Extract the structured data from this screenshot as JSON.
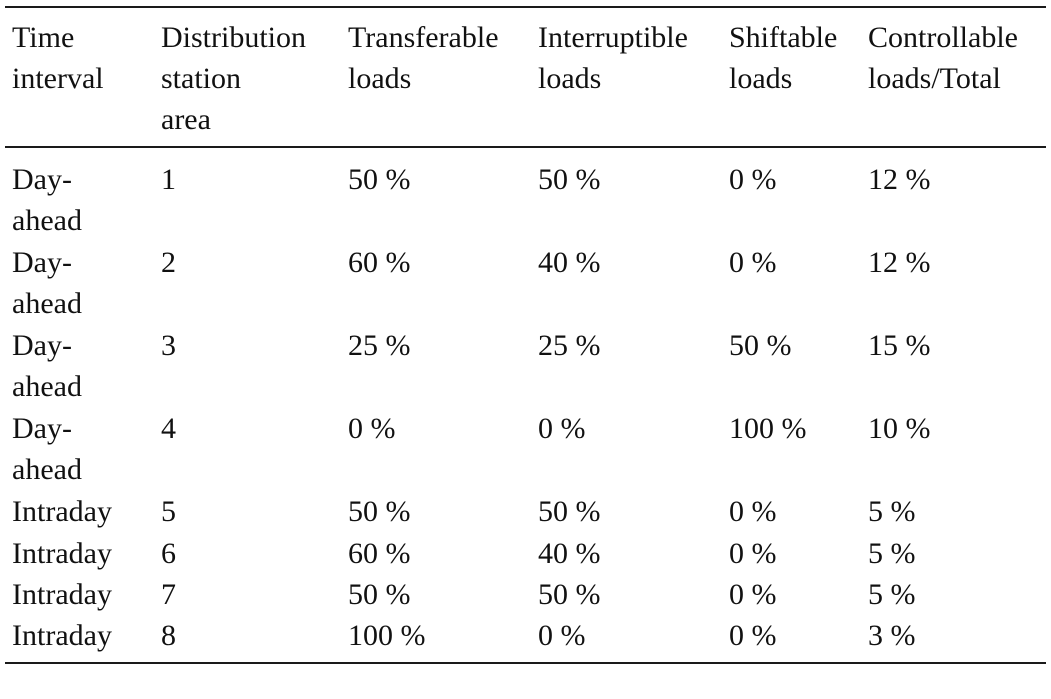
{
  "table": {
    "headers": [
      [
        "Time",
        "interval"
      ],
      [
        "Distribution",
        "station",
        "area"
      ],
      [
        "Transferable",
        "loads"
      ],
      [
        "Interruptible",
        "loads"
      ],
      [
        "Shiftable",
        "loads"
      ],
      [
        "Controllable",
        "loads/Total"
      ]
    ],
    "rows": [
      {
        "time": [
          "Day-",
          "ahead"
        ],
        "area": "1",
        "transferable": "50 %",
        "interruptible": "50 %",
        "shiftable": "0 %",
        "controllable": "12 %"
      },
      {
        "time": [
          "Day-",
          "ahead"
        ],
        "area": "2",
        "transferable": "60 %",
        "interruptible": "40 %",
        "shiftable": "0 %",
        "controllable": "12 %"
      },
      {
        "time": [
          "Day-",
          "ahead"
        ],
        "area": "3",
        "transferable": "25 %",
        "interruptible": "25 %",
        "shiftable": "50 %",
        "controllable": "15 %"
      },
      {
        "time": [
          "Day-",
          "ahead"
        ],
        "area": "4",
        "transferable": "0 %",
        "interruptible": "0 %",
        "shiftable": "100 %",
        "controllable": "10 %"
      },
      {
        "time": [
          "Intraday"
        ],
        "area": "5",
        "transferable": "50 %",
        "interruptible": "50 %",
        "shiftable": "0 %",
        "controllable": "5 %"
      },
      {
        "time": [
          "Intraday"
        ],
        "area": "6",
        "transferable": "60 %",
        "interruptible": "40 %",
        "shiftable": "0 %",
        "controllable": "5 %"
      },
      {
        "time": [
          "Intraday"
        ],
        "area": "7",
        "transferable": "50 %",
        "interruptible": "50 %",
        "shiftable": "0 %",
        "controllable": "5 %"
      },
      {
        "time": [
          "Intraday"
        ],
        "area": "8",
        "transferable": "100 %",
        "interruptible": "0 %",
        "shiftable": "0 %",
        "controllable": "3 %"
      }
    ]
  }
}
